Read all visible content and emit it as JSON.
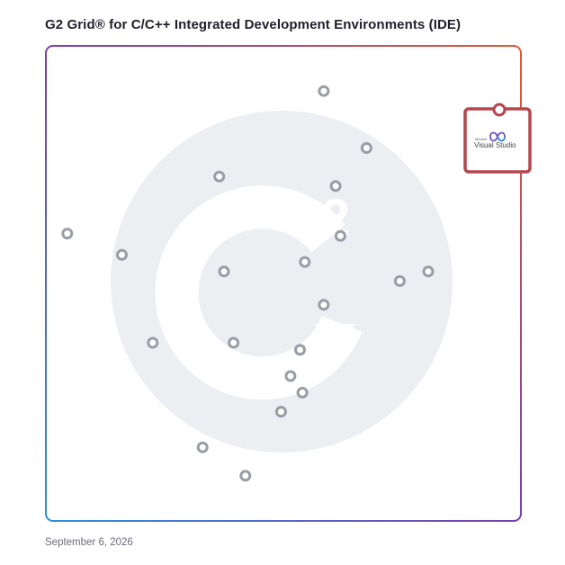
{
  "title": "G2 Grid® for C/C++ Integrated Development Environments (IDE)",
  "date": "September 6, 2026",
  "highlight": {
    "name": "Visual Studio",
    "vendor": "Microsoft",
    "color": "#b5464e"
  },
  "colors": {
    "dot": "#9a9ca6",
    "watermark": "#eceef2",
    "frame_start": "#5b3fb3",
    "frame_end": "#e4592f",
    "frame_bottom_left": "#2f8fd6"
  },
  "watermark_icon": "g2-logo-watermark",
  "chart_data": {
    "type": "scatter",
    "title": "G2 Grid® for C/C++ Integrated Development Environments (IDE)",
    "xlabel": "",
    "ylabel": "",
    "xlim": [
      0,
      100
    ],
    "ylim": [
      0,
      100
    ],
    "quadrant_split": [
      50,
      50
    ],
    "grid": false,
    "points": [
      {
        "x": 58.5,
        "y": 90.5
      },
      {
        "x": 67.5,
        "y": 78.5
      },
      {
        "x": 36.5,
        "y": 72.5
      },
      {
        "x": 61.0,
        "y": 70.5
      },
      {
        "x": 4.5,
        "y": 60.5
      },
      {
        "x": 62.0,
        "y": 60.0
      },
      {
        "x": 16.0,
        "y": 56.0
      },
      {
        "x": 54.5,
        "y": 54.5
      },
      {
        "x": 37.5,
        "y": 52.5
      },
      {
        "x": 80.5,
        "y": 52.5
      },
      {
        "x": 74.5,
        "y": 50.5
      },
      {
        "x": 58.5,
        "y": 45.5
      },
      {
        "x": 22.5,
        "y": 37.5
      },
      {
        "x": 39.5,
        "y": 37.5
      },
      {
        "x": 53.5,
        "y": 36.0
      },
      {
        "x": 51.5,
        "y": 30.5
      },
      {
        "x": 54.0,
        "y": 27.0
      },
      {
        "x": 49.5,
        "y": 23.0
      },
      {
        "x": 33.0,
        "y": 15.5
      },
      {
        "x": 42.0,
        "y": 9.5
      }
    ],
    "highlight_point": {
      "label": "Visual Studio",
      "x": 95.0,
      "y": 86.0
    }
  }
}
